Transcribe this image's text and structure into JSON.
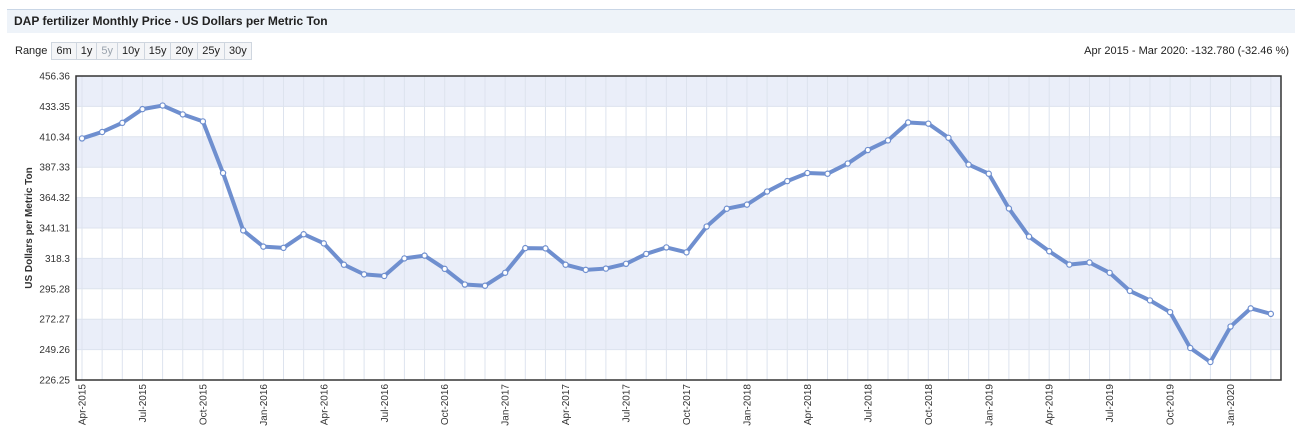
{
  "header": {
    "title": "DAP fertilizer Monthly Price - US Dollars per Metric Ton"
  },
  "range": {
    "label": "Range",
    "buttons": [
      {
        "label": "6m",
        "enabled": true
      },
      {
        "label": "1y",
        "enabled": true
      },
      {
        "label": "5y",
        "enabled": false
      },
      {
        "label": "10y",
        "enabled": true
      },
      {
        "label": "15y",
        "enabled": true
      },
      {
        "label": "20y",
        "enabled": true
      },
      {
        "label": "25y",
        "enabled": true
      },
      {
        "label": "30y",
        "enabled": true
      }
    ],
    "summary": "Apr 2015 - Mar 2020: -132.780 (-32.46 %)"
  },
  "colors": {
    "line": "#6f8fcf",
    "marker_fill": "#ffffff",
    "band": "#eaeef9",
    "grid": "#dde3ee",
    "frame": "#333333",
    "header_bg": "#eef3f9"
  },
  "chart_data": {
    "type": "line",
    "title": "",
    "xlabel": "",
    "ylabel": "US Dollars per Metric Ton",
    "ylim": [
      226.25,
      456.36
    ],
    "yticks": [
      "456.36",
      "433.35",
      "410.34",
      "387.33",
      "364.32",
      "341.31",
      "318.3",
      "295.28",
      "272.27",
      "249.26",
      "226.25"
    ],
    "ytick_values": [
      456.36,
      433.35,
      410.34,
      387.33,
      364.32,
      341.31,
      318.3,
      295.28,
      272.27,
      249.26,
      226.25
    ],
    "xticks": [
      {
        "label": "Apr-2015",
        "index": 0
      },
      {
        "label": "Jul-2015",
        "index": 3
      },
      {
        "label": "Oct-2015",
        "index": 6
      },
      {
        "label": "Jan-2016",
        "index": 9
      },
      {
        "label": "Apr-2016",
        "index": 12
      },
      {
        "label": "Jul-2016",
        "index": 15
      },
      {
        "label": "Oct-2016",
        "index": 18
      },
      {
        "label": "Jan-2017",
        "index": 21
      },
      {
        "label": "Apr-2017",
        "index": 24
      },
      {
        "label": "Jul-2017",
        "index": 27
      },
      {
        "label": "Oct-2017",
        "index": 30
      },
      {
        "label": "Jan-2018",
        "index": 33
      },
      {
        "label": "Apr-2018",
        "index": 36
      },
      {
        "label": "Jul-2018",
        "index": 39
      },
      {
        "label": "Oct-2018",
        "index": 42
      },
      {
        "label": "Jan-2019",
        "index": 45
      },
      {
        "label": "Apr-2019",
        "index": 48
      },
      {
        "label": "Jul-2019",
        "index": 51
      },
      {
        "label": "Oct-2019",
        "index": 54
      },
      {
        "label": "Jan-2020",
        "index": 57
      }
    ],
    "grid": true,
    "legend": "none",
    "series": [
      {
        "x": [
          "Apr-2015",
          "May-2015",
          "Jun-2015",
          "Jul-2015",
          "Aug-2015",
          "Sep-2015",
          "Oct-2015",
          "Nov-2015",
          "Dec-2015",
          "Jan-2016",
          "Feb-2016",
          "Mar-2016",
          "Apr-2016",
          "May-2016",
          "Jun-2016",
          "Jul-2016",
          "Aug-2016",
          "Sep-2016",
          "Oct-2016",
          "Nov-2016",
          "Dec-2016",
          "Jan-2017",
          "Feb-2017",
          "Mar-2017",
          "Apr-2017",
          "May-2017",
          "Jun-2017",
          "Jul-2017",
          "Aug-2017",
          "Sep-2017",
          "Oct-2017",
          "Nov-2017",
          "Dec-2017",
          "Jan-2018",
          "Feb-2018",
          "Mar-2018",
          "Apr-2018",
          "May-2018",
          "Jun-2018",
          "Jul-2018",
          "Aug-2018",
          "Sep-2018",
          "Oct-2018",
          "Nov-2018",
          "Dec-2018",
          "Jan-2019",
          "Feb-2019",
          "Mar-2019",
          "Apr-2019",
          "May-2019",
          "Jun-2019",
          "Jul-2019",
          "Aug-2019",
          "Sep-2019",
          "Oct-2019",
          "Nov-2019",
          "Dec-2019",
          "Jan-2020",
          "Feb-2020",
          "Mar-2020"
        ],
        "values": [
          409.1,
          414.0,
          420.9,
          431.3,
          434.0,
          427.3,
          422.0,
          382.9,
          339.5,
          327.2,
          326.3,
          336.6,
          329.7,
          313.5,
          306.2,
          305.0,
          318.3,
          320.4,
          310.4,
          298.5,
          297.6,
          307.4,
          326.1,
          325.9,
          313.5,
          309.6,
          310.6,
          314.2,
          321.7,
          326.6,
          322.9,
          342.4,
          355.9,
          359.0,
          368.9,
          376.8,
          382.9,
          382.4,
          390.1,
          400.3,
          407.6,
          421.2,
          420.3,
          409.6,
          389.3,
          382.4,
          356.1,
          334.8,
          323.7,
          313.6,
          315.2,
          307.4,
          293.7,
          286.5,
          277.6,
          250.5,
          239.9,
          266.7,
          280.5,
          276.3
        ]
      }
    ]
  }
}
